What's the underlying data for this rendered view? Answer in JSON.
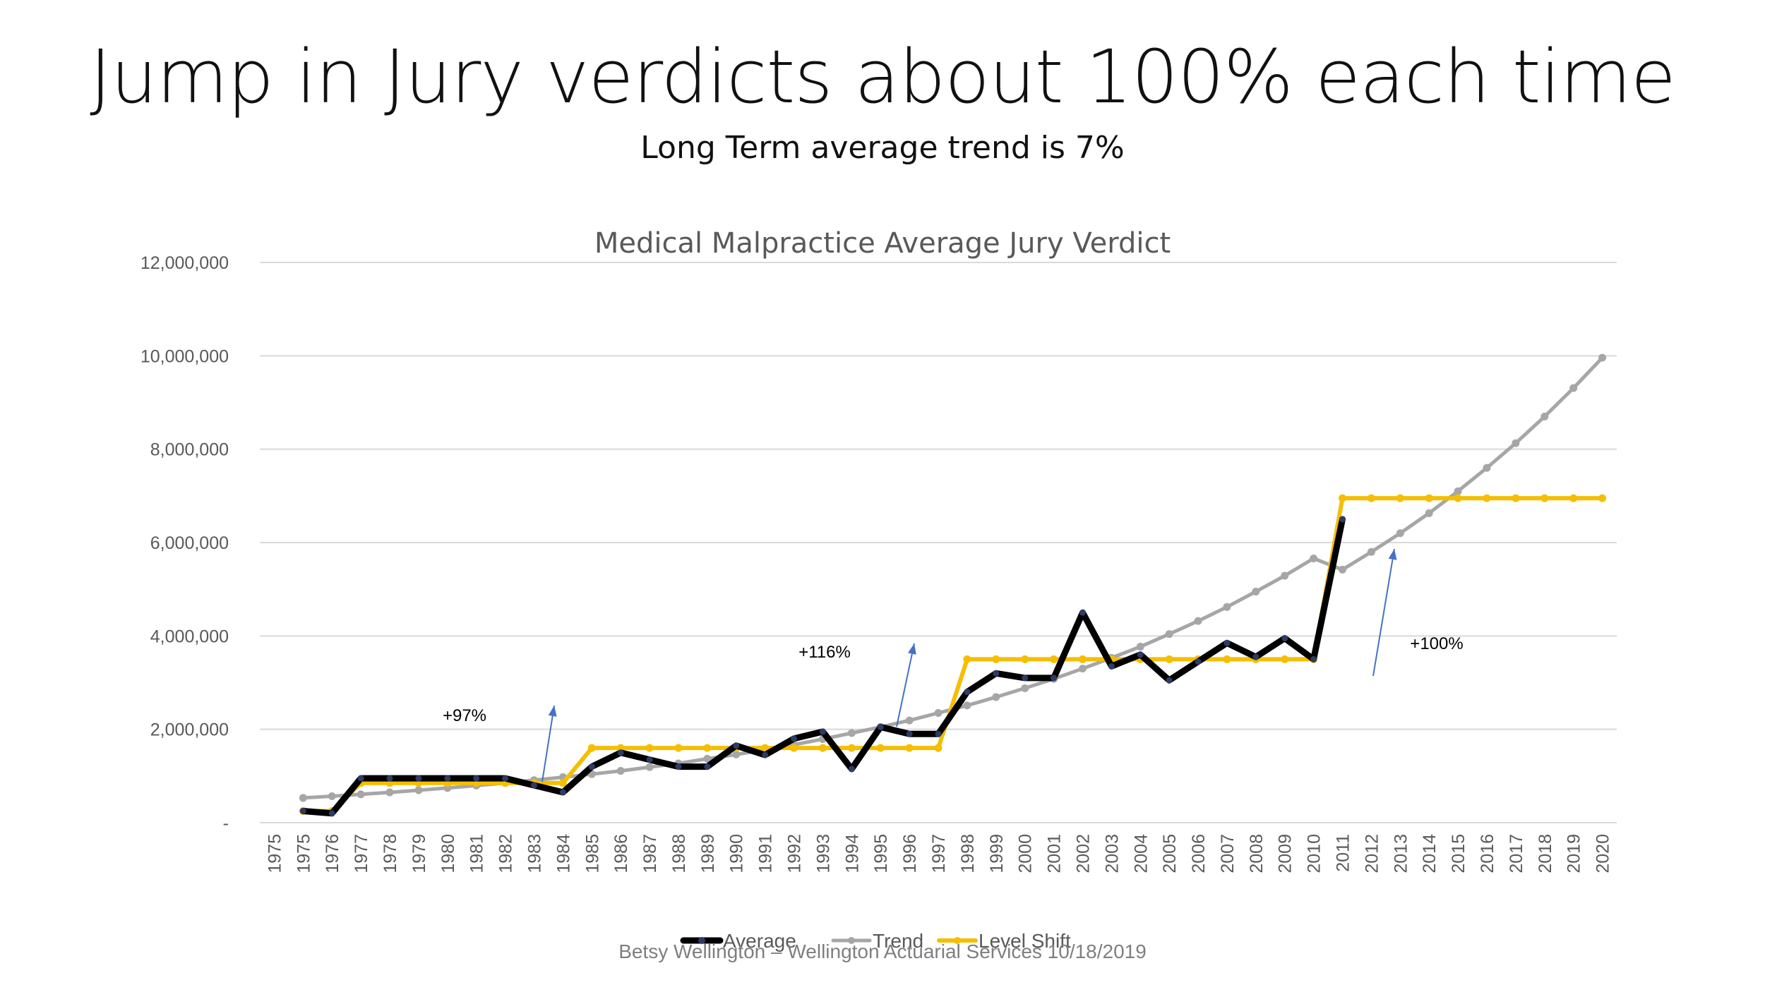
{
  "slide": {
    "title": "Jump in Jury verdicts about 100% each time",
    "subtitle": "Long Term average trend is 7%",
    "footer": "Betsy Wellington –  Wellington Actuarial Services 10/18/2019"
  },
  "colors": {
    "average": "#000000",
    "average_marker": "#2e3b63",
    "trend": "#a6a6a6",
    "level_shift": "#f5be00",
    "arrow": "#4472c4",
    "grid": "#d9d9d9"
  },
  "chart_data": {
    "type": "line",
    "title": "Medical Malpractice Average Jury Verdict",
    "xlabel": "",
    "ylabel": "",
    "ylim": [
      0,
      12000000
    ],
    "yticks": [
      {
        "value": 0,
        "label": "-"
      },
      {
        "value": 2000000,
        "label": "2,000,000"
      },
      {
        "value": 4000000,
        "label": "4,000,000"
      },
      {
        "value": 6000000,
        "label": "6,000,000"
      },
      {
        "value": 8000000,
        "label": "8,000,000"
      },
      {
        "value": 10000000,
        "label": "10,000,000"
      },
      {
        "value": 12000000,
        "label": "12,000,000"
      }
    ],
    "categories": [
      "1975",
      "1975",
      "1976",
      "1977",
      "1978",
      "1979",
      "1980",
      "1981",
      "1982",
      "1983",
      "1984",
      "1985",
      "1986",
      "1987",
      "1988",
      "1989",
      "1990",
      "1991",
      "1992",
      "1993",
      "1994",
      "1995",
      "1996",
      "1997",
      "1998",
      "1999",
      "2000",
      "2001",
      "2002",
      "2003",
      "2004",
      "2005",
      "2006",
      "2007",
      "2008",
      "2009",
      "2010",
      "2011",
      "2012",
      "2013",
      "2014",
      "2015",
      "2016",
      "2017",
      "2018",
      "2019",
      "2020"
    ],
    "grid": true,
    "legend_position": "bottom",
    "series": [
      {
        "name": "Average",
        "values": [
          null,
          250000,
          200000,
          950000,
          950000,
          950000,
          950000,
          950000,
          950000,
          800000,
          650000,
          1200000,
          1500000,
          1350000,
          1200000,
          1200000,
          1650000,
          1450000,
          1800000,
          1950000,
          1150000,
          2050000,
          1900000,
          1900000,
          2800000,
          3200000,
          3100000,
          3100000,
          4500000,
          3350000,
          3600000,
          3050000,
          3450000,
          3850000,
          3550000,
          3950000,
          3500000,
          6500000,
          null,
          null,
          null,
          null,
          null,
          null,
          null,
          null,
          null
        ]
      },
      {
        "name": "Trend",
        "values": [
          null,
          530000,
          567000,
          607000,
          649000,
          695000,
          743000,
          795000,
          851000,
          911000,
          974000,
          1040000,
          1110000,
          1190000,
          1270000,
          1370000,
          1460000,
          1560000,
          1670000,
          1790000,
          1920000,
          2050000,
          2190000,
          2350000,
          2510000,
          2690000,
          2880000,
          3080000,
          3300000,
          3530000,
          3770000,
          4040000,
          4320000,
          4620000,
          4950000,
          5290000,
          5660000,
          5420000,
          5800000,
          6200000,
          6630000,
          7100000,
          7600000,
          8130000,
          8700000,
          9310000,
          9960000
        ]
      },
      {
        "name": "Level Shift",
        "values": [
          null,
          250000,
          250000,
          850000,
          850000,
          850000,
          850000,
          850000,
          850000,
          850000,
          850000,
          1600000,
          1600000,
          1600000,
          1600000,
          1600000,
          1600000,
          1600000,
          1600000,
          1600000,
          1600000,
          1600000,
          1600000,
          1600000,
          3500000,
          3500000,
          3500000,
          3500000,
          3500000,
          3500000,
          3500000,
          3500000,
          3500000,
          3500000,
          3500000,
          3500000,
          3500000,
          6950000,
          6950000,
          6950000,
          6950000,
          6950000,
          6950000,
          6950000,
          6950000,
          6950000,
          6950000
        ]
      }
    ],
    "annotations": [
      {
        "text": "+97%",
        "x_index": 10
      },
      {
        "text": "+116%",
        "x_index": 23
      },
      {
        "text": "+100%",
        "x_index": 37
      }
    ]
  }
}
